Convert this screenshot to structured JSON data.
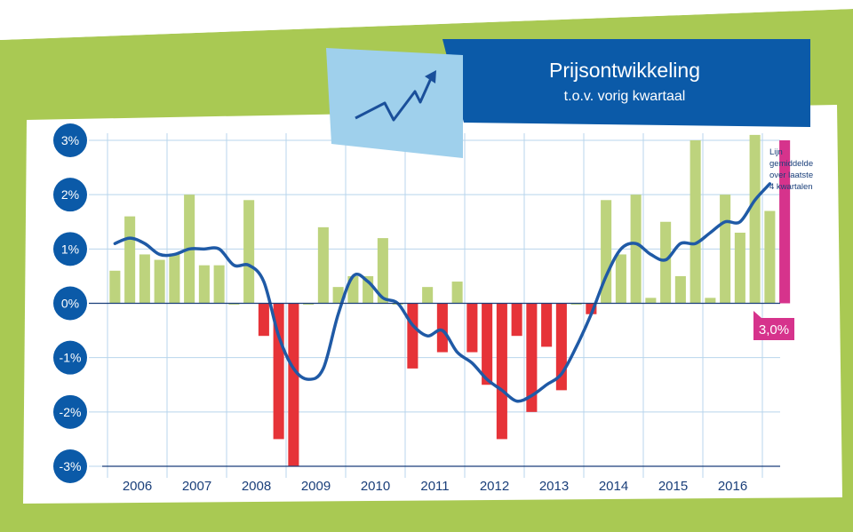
{
  "chart_data": {
    "type": "bar",
    "title": "Prijsontwikkeling",
    "subtitle": "t.o.v. vorig kwartaal",
    "ylim": [
      -3,
      3
    ],
    "y_ticks": [
      {
        "value": 3,
        "label": "3%"
      },
      {
        "value": 2,
        "label": "2%"
      },
      {
        "value": 1,
        "label": "1%"
      },
      {
        "value": 0,
        "label": "0%"
      },
      {
        "value": -1,
        "label": "-1%"
      },
      {
        "value": -2,
        "label": "-2%"
      },
      {
        "value": -3,
        "label": "-3%"
      }
    ],
    "years": [
      "2006",
      "2007",
      "2008",
      "2009",
      "2010",
      "2011",
      "2012",
      "2013",
      "2014",
      "2015",
      "2016"
    ],
    "quarters_per_year": 4,
    "bars": [
      0.6,
      1.6,
      0.9,
      0.8,
      0.9,
      2.0,
      0.7,
      0.7,
      0.0,
      1.9,
      -0.6,
      -2.5,
      -3.0,
      0.0,
      1.4,
      0.3,
      0.5,
      0.5,
      1.2,
      0.0,
      -1.2,
      0.3,
      -0.9,
      0.4,
      -0.9,
      -1.5,
      -2.5,
      -0.6,
      -2.0,
      -0.8,
      -1.6,
      0.0,
      -0.2,
      1.9,
      0.9,
      2.0,
      0.1,
      1.5,
      0.5,
      3.0,
      0.1,
      2.0,
      1.3,
      3.1,
      1.7,
      3.0
    ],
    "moving_average": [
      1.1,
      1.2,
      1.1,
      0.9,
      0.9,
      1.0,
      1.0,
      1.0,
      0.7,
      0.7,
      0.4,
      -0.6,
      -1.2,
      -1.4,
      -1.2,
      -0.2,
      0.5,
      0.4,
      0.1,
      0.0,
      -0.4,
      -0.6,
      -0.5,
      -0.9,
      -1.1,
      -1.4,
      -1.6,
      -1.8,
      -1.7,
      -1.5,
      -1.3,
      -0.8,
      -0.2,
      0.5,
      1.0,
      1.1,
      0.9,
      0.8,
      1.1,
      1.1,
      1.3,
      1.5,
      1.5,
      1.9,
      2.2
    ],
    "colors": {
      "positive": "#bdd37d",
      "negative": "#e63338",
      "latest": "#d6338c",
      "line": "#1f5aa6",
      "axis": "#1a3f7a",
      "grid": "#b8d5ec",
      "background": "#a9c953",
      "title_bg": "#0b5aa8",
      "icon_bg": "#9fd0ec"
    },
    "line_legend": [
      "Lijn",
      "gemiddelde",
      "over laatste",
      "4 kwartalen"
    ],
    "latest_value_label": "3,0%"
  }
}
